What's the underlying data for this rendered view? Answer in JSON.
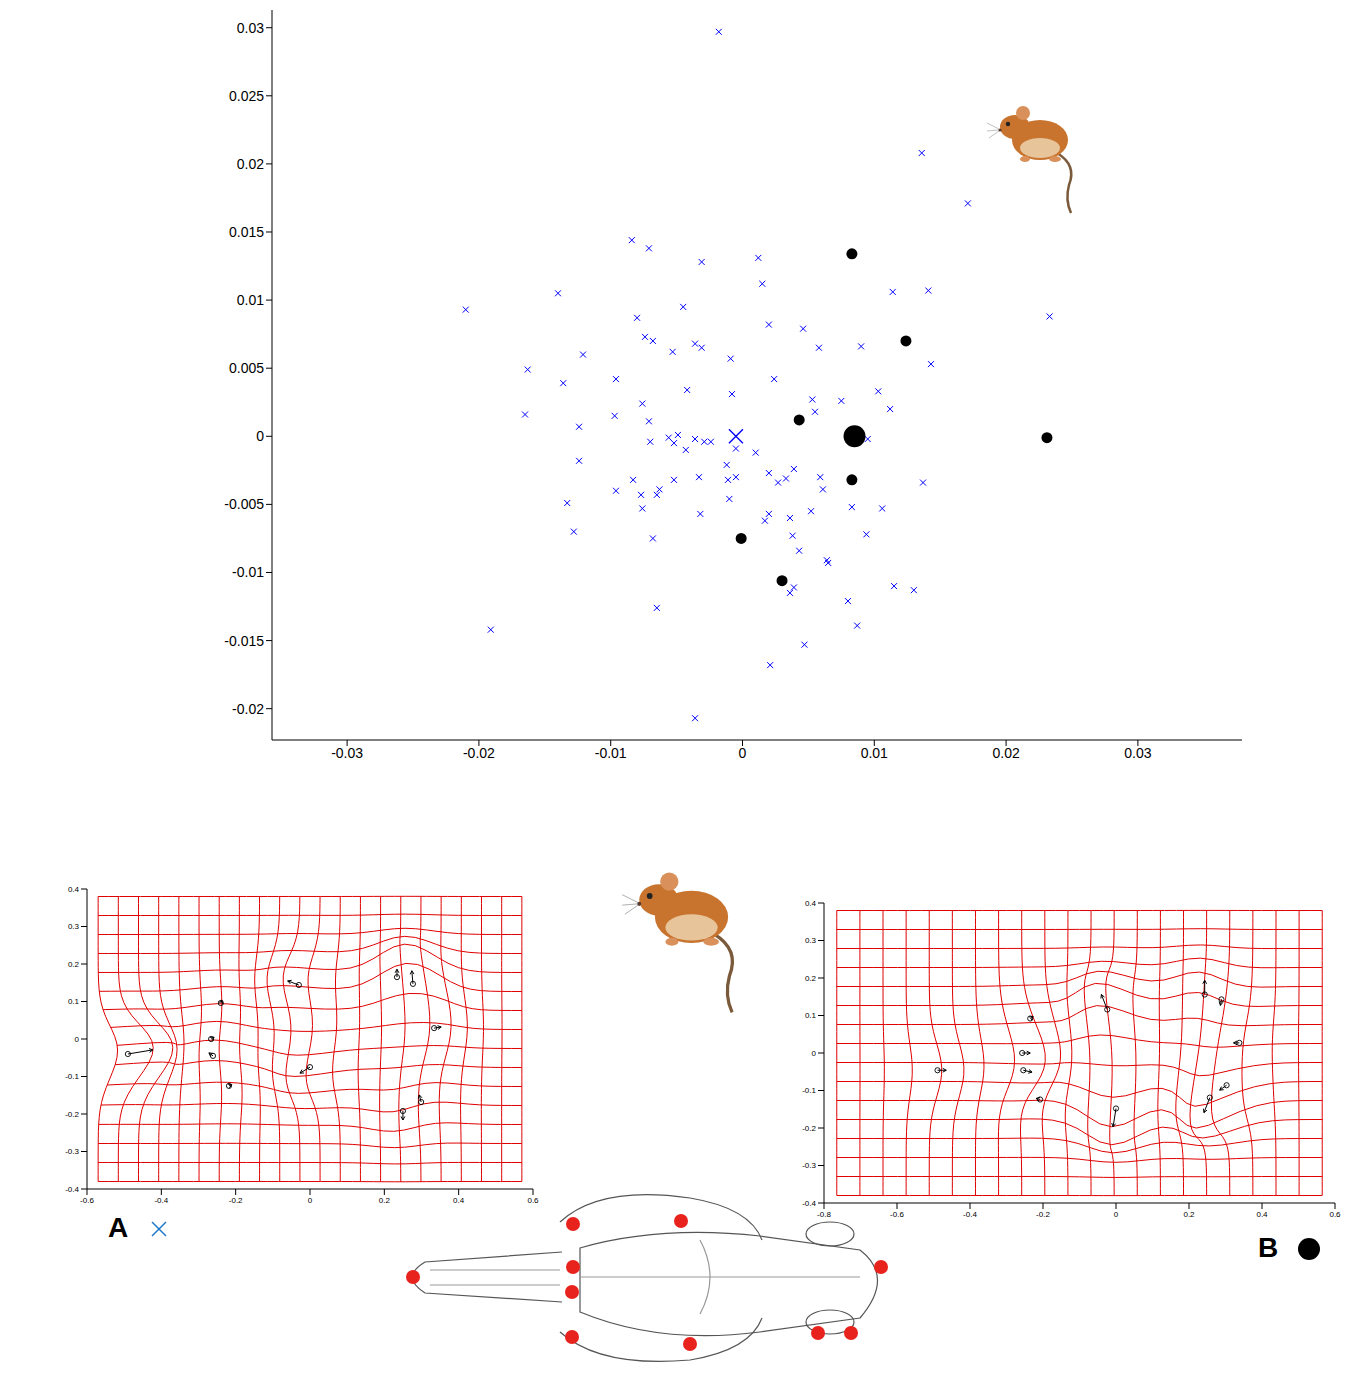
{
  "chart_data": [
    {
      "type": "scatter",
      "xlim": [
        -0.0357,
        0.0379
      ],
      "ylim": [
        -0.0223,
        0.0313
      ],
      "xticks": [
        -0.03,
        -0.02,
        -0.01,
        0,
        0.01,
        0.02,
        0.03
      ],
      "yticks": [
        -0.02,
        -0.015,
        -0.01,
        -0.005,
        0,
        0.005,
        0.01,
        0.015,
        0.02,
        0.025,
        0.03
      ],
      "series": [
        {
          "color": "#0000ff",
          "marker": "x",
          "points": [
            [
              -0.0018,
              0.0297
            ],
            [
              0.0136,
              0.0208
            ],
            [
              0.0171,
              0.0171
            ],
            [
              -0.021,
              0.0093
            ],
            [
              0.0233,
              0.0088
            ],
            [
              -0.0084,
              0.0144
            ],
            [
              -0.0071,
              0.0138
            ],
            [
              -0.014,
              0.0105
            ],
            [
              -0.0031,
              0.0128
            ],
            [
              0.0012,
              0.0131
            ],
            [
              0.0015,
              0.0112
            ],
            [
              0.0114,
              0.0106
            ],
            [
              0.0141,
              0.0107
            ],
            [
              -0.008,
              0.0087
            ],
            [
              -0.0045,
              0.0095
            ],
            [
              -0.0163,
              0.0049
            ],
            [
              -0.0121,
              0.006
            ],
            [
              -0.0136,
              0.0039
            ],
            [
              -0.0096,
              0.0042
            ],
            [
              -0.0074,
              0.0073
            ],
            [
              -0.0068,
              0.007
            ],
            [
              -0.0053,
              0.0062
            ],
            [
              -0.0036,
              0.0068
            ],
            [
              -0.0031,
              0.0065
            ],
            [
              -0.0009,
              0.0057
            ],
            [
              0.002,
              0.0082
            ],
            [
              0.0046,
              0.0079
            ],
            [
              0.0058,
              0.0065
            ],
            [
              0.009,
              0.0066
            ],
            [
              0.0143,
              0.0053
            ],
            [
              -0.0165,
              0.0016
            ],
            [
              -0.0097,
              0.0015
            ],
            [
              -0.0076,
              0.0024
            ],
            [
              -0.0071,
              0.0011
            ],
            [
              -0.0042,
              0.0034
            ],
            [
              -0.0008,
              0.0031
            ],
            [
              0.0024,
              0.0042
            ],
            [
              0.0053,
              0.0027
            ],
            [
              0.0055,
              0.0018
            ],
            [
              0.0075,
              0.0026
            ],
            [
              0.0103,
              0.0033
            ],
            [
              0.0112,
              0.002
            ],
            [
              -0.0124,
              0.0007
            ],
            [
              -0.007,
              -0.0004
            ],
            [
              -0.0056,
              -0.0001
            ],
            [
              -0.0049,
              0.0001
            ],
            [
              -0.0052,
              -0.0005
            ],
            [
              -0.0043,
              -0.001
            ],
            [
              -0.0036,
              -0.0002
            ],
            [
              -0.0029,
              -0.0004
            ],
            [
              -0.0024,
              -0.0004
            ],
            [
              -0.0005,
              -0.0009
            ],
            [
              0.001,
              -0.0012
            ],
            [
              0.0095,
              -0.0002
            ],
            [
              -0.0124,
              -0.0018
            ],
            [
              -0.0096,
              -0.004
            ],
            [
              -0.0083,
              -0.0032
            ],
            [
              -0.0077,
              -0.0043
            ],
            [
              -0.0076,
              -0.0053
            ],
            [
              -0.0065,
              -0.0043
            ],
            [
              -0.0063,
              -0.0039
            ],
            [
              -0.0052,
              -0.0032
            ],
            [
              -0.0033,
              -0.003
            ],
            [
              -0.0012,
              -0.0021
            ],
            [
              -0.0011,
              -0.0032
            ],
            [
              -0.0005,
              -0.003
            ],
            [
              0.002,
              -0.0027
            ],
            [
              0.0027,
              -0.0034
            ],
            [
              0.0033,
              -0.0031
            ],
            [
              0.0039,
              -0.0024
            ],
            [
              0.0059,
              -0.003
            ],
            [
              0.0061,
              -0.0039
            ],
            [
              0.0083,
              -0.0052
            ],
            [
              0.0106,
              -0.0053
            ],
            [
              0.0137,
              -0.0034
            ],
            [
              -0.0133,
              -0.0049
            ],
            [
              -0.0128,
              -0.007
            ],
            [
              -0.0068,
              -0.0075
            ],
            [
              -0.0032,
              -0.0057
            ],
            [
              -0.001,
              -0.0046
            ],
            [
              0.0017,
              -0.0062
            ],
            [
              0.002,
              -0.0057
            ],
            [
              0.0036,
              -0.006
            ],
            [
              0.0038,
              -0.0073
            ],
            [
              0.0052,
              -0.0055
            ],
            [
              0.0043,
              -0.0084
            ],
            [
              0.0094,
              -0.0072
            ],
            [
              -0.0065,
              -0.0126
            ],
            [
              0.0036,
              -0.0115
            ],
            [
              0.0039,
              -0.0111
            ],
            [
              0.0064,
              -0.0091
            ],
            [
              0.0065,
              -0.0093
            ],
            [
              0.008,
              -0.0121
            ],
            [
              0.0087,
              -0.0139
            ],
            [
              0.0115,
              -0.011
            ],
            [
              0.013,
              -0.0113
            ],
            [
              0.0021,
              -0.0168
            ],
            [
              0.0047,
              -0.0153
            ],
            [
              -0.0036,
              -0.0207
            ],
            [
              -0.0191,
              -0.0142
            ]
          ]
        },
        {
          "color": "#000000",
          "marker": "circle",
          "points": [
            [
              0.0083,
              0.0134
            ],
            [
              0.0124,
              0.007
            ],
            [
              0.0043,
              0.0012
            ],
            [
              0.0083,
              -0.0032
            ],
            [
              0.0231,
              -0.0001
            ],
            [
              -0.0001,
              -0.0075
            ],
            [
              0.003,
              -0.0106
            ]
          ]
        },
        {
          "color": "#0000ff",
          "marker": "large_x",
          "points": [
            [
              -0.0005,
              0
            ]
          ]
        },
        {
          "color": "#000000",
          "marker": "large_circle",
          "points": [
            [
              0.0085,
              0
            ]
          ]
        }
      ]
    },
    {
      "type": "deformation_grid",
      "color": "#e00000",
      "xlim": [
        -0.6,
        0.6
      ],
      "ylim": [
        -0.4,
        0.4
      ],
      "xticks": [
        -0.6,
        -0.4,
        -0.2,
        0,
        0.2,
        0.4,
        0.6
      ],
      "yticks": [
        -0.4,
        -0.3,
        -0.2,
        -0.1,
        0,
        0.1,
        0.2,
        0.3,
        0.4
      ],
      "annotations": [
        {
          "text": "A",
          "marker": "large_x",
          "color": "#1b75c9"
        }
      ],
      "landmarks": {
        "x": [
          -0.49,
          -0.24,
          -0.266,
          -0.261,
          -0.218,
          -0.03,
          0,
          0.234,
          0.277,
          0.334,
          0.25,
          0.299
        ],
        "y": [
          -0.04,
          0.096,
          0,
          -0.045,
          -0.125,
          0.144,
          -0.075,
          0.165,
          0.147,
          0.029,
          -0.192,
          -0.168
        ],
        "dx": [
          0.067,
          0.003,
          0.008,
          -0.011,
          0.008,
          -0.03,
          -0.027,
          0,
          -0.003,
          0.019,
          0,
          -0.005
        ],
        "dy": [
          0.011,
          0.008,
          0.005,
          0.008,
          0.003,
          0.011,
          -0.016,
          0.021,
          0.035,
          0.003,
          -0.024,
          0.019
        ]
      }
    },
    {
      "type": "deformation_grid",
      "color": "#e00000",
      "xlim": [
        -0.8,
        0.6
      ],
      "ylim": [
        -0.4,
        0.4
      ],
      "xticks": [
        -0.8,
        -0.6,
        -0.4,
        -0.2,
        0,
        0.2,
        0.4,
        0.6
      ],
      "yticks": [
        -0.4,
        -0.3,
        -0.2,
        -0.1,
        0,
        0.1,
        0.2,
        0.3,
        0.4
      ],
      "annotations": [
        {
          "text": "B",
          "marker": "large_circle",
          "color": "#000000"
        }
      ],
      "landmarks": {
        "x": [
          -0.489,
          -0.235,
          -0.257,
          -0.254,
          -0.208,
          -0.024,
          0,
          0.243,
          0.289,
          0.338,
          0.257,
          0.303
        ],
        "y": [
          -0.046,
          0.092,
          0,
          -0.046,
          -0.124,
          0.116,
          -0.148,
          0.156,
          0.143,
          0.027,
          -0.119,
          -0.086
        ],
        "dx": [
          0.024,
          0.008,
          0.022,
          0.024,
          -0.011,
          -0.016,
          -0.008,
          0,
          -0.003,
          -0.016,
          -0.016,
          -0.019
        ],
        "dy": [
          0,
          0.005,
          0,
          -0.005,
          0.003,
          0.04,
          -0.049,
          0.038,
          -0.016,
          0,
          -0.04,
          -0.013
        ]
      }
    }
  ]
}
